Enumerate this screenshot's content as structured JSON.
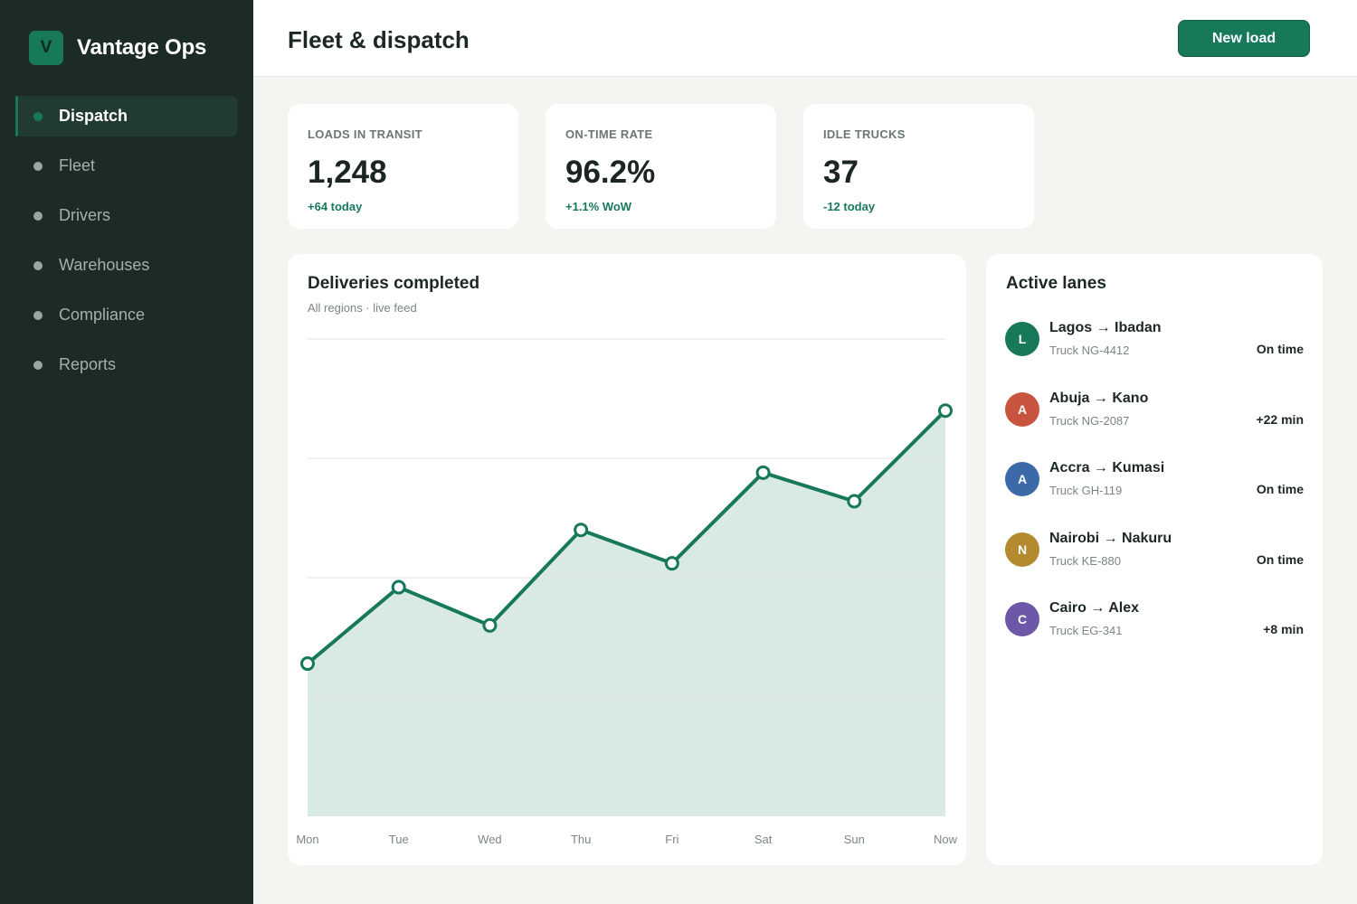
{
  "app": {
    "logo_letter": "V",
    "name": "Vantage Ops"
  },
  "sidebar": {
    "items": [
      {
        "label": "Dispatch",
        "active": true
      },
      {
        "label": "Fleet",
        "active": false
      },
      {
        "label": "Drivers",
        "active": false
      },
      {
        "label": "Warehouses",
        "active": false
      },
      {
        "label": "Compliance",
        "active": false
      },
      {
        "label": "Reports",
        "active": false
      }
    ]
  },
  "header": {
    "title": "Fleet & dispatch",
    "primary_button": "New load"
  },
  "kpis": [
    {
      "label": "LOADS IN TRANSIT",
      "value": "1,248",
      "delta": "+64 today"
    },
    {
      "label": "ON-TIME RATE",
      "value": "96.2%",
      "delta": "+1.1% WoW"
    },
    {
      "label": "IDLE TRUCKS",
      "value": "37",
      "delta": "-12 today"
    }
  ],
  "deliveries_card": {
    "title": "Deliveries completed",
    "subtitle": "All regions · live feed"
  },
  "chart_data": {
    "type": "area",
    "title": "Deliveries completed",
    "subtitle": "All regions · live feed",
    "categories": [
      "Mon",
      "Tue",
      "Wed",
      "Thu",
      "Fri",
      "Sat",
      "Sun",
      "Now"
    ],
    "values": [
      32,
      48,
      40,
      60,
      53,
      72,
      66,
      85
    ],
    "ylim": [
      0,
      100
    ],
    "gridlines": [
      25,
      50,
      75,
      100
    ],
    "grid": true,
    "y_tick_labels_shown": false,
    "colors": {
      "line": "#17785a",
      "fill": "#d9e9e3",
      "grid": "#e3e5e0"
    }
  },
  "lanes_card": {
    "title": "Active lanes",
    "lanes": [
      {
        "initial": "L",
        "route": "Lagos → Ibadan",
        "truck": "Truck NG-4412",
        "status": "On time",
        "color": "#17785a"
      },
      {
        "initial": "A",
        "route": "Abuja → Kano",
        "truck": "Truck NG-2087",
        "status": "+22 min",
        "color": "#c8533f"
      },
      {
        "initial": "A",
        "route": "Accra → Kumasi",
        "truck": "Truck GH-119",
        "status": "On time",
        "color": "#3c6aa8"
      },
      {
        "initial": "N",
        "route": "Nairobi → Nakuru",
        "truck": "Truck KE-880",
        "status": "On time",
        "color": "#b38a2e"
      },
      {
        "initial": "C",
        "route": "Cairo → Alex",
        "truck": "Truck EG-341",
        "status": "+8 min",
        "color": "#6c57a8"
      }
    ]
  },
  "colors": {
    "sidebar_bg": "#1d2b26",
    "accent": "#17785a",
    "page_bg": "#f4f4f1"
  }
}
